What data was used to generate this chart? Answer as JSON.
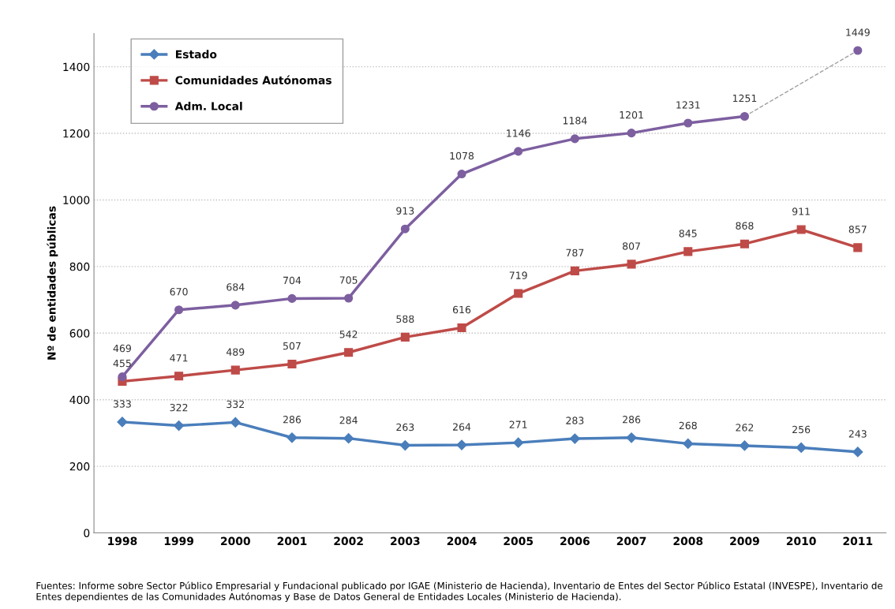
{
  "chart_data": {
    "type": "line",
    "ylabel": "Nº de entidades públicas",
    "categories": [
      "1998",
      "1999",
      "2000",
      "2001",
      "2002",
      "2003",
      "2004",
      "2005",
      "2006",
      "2007",
      "2008",
      "2009",
      "2010",
      "2011"
    ],
    "series": [
      {
        "name": "Estado",
        "color": "#4a7ebb",
        "marker": "diamond",
        "values": [
          333,
          322,
          332,
          286,
          284,
          263,
          264,
          271,
          283,
          286,
          268,
          262,
          256,
          243
        ]
      },
      {
        "name": "Comunidades Autónomas",
        "color": "#be4b48",
        "marker": "square",
        "values": [
          455,
          471,
          489,
          507,
          542,
          588,
          616,
          719,
          787,
          807,
          845,
          868,
          911,
          857
        ]
      },
      {
        "name": "Adm. Local",
        "color": "#7d5fa0",
        "marker": "circle",
        "values": [
          469,
          670,
          684,
          704,
          705,
          913,
          1078,
          1146,
          1184,
          1201,
          1231,
          1251,
          null,
          1449
        ]
      },
      {
        "color": "#a0a0a0",
        "marker": "none",
        "line_style": "dashed",
        "values": [
          null,
          null,
          null,
          null,
          null,
          null,
          null,
          null,
          null,
          null,
          null,
          1251,
          null,
          1449
        ],
        "value_labels": [
          null,
          null,
          null,
          null,
          null,
          null,
          null,
          null,
          null,
          null,
          null,
          null,
          null,
          null
        ]
      }
    ],
    "ylim": [
      0,
      1500
    ],
    "yticks": [
      0,
      200,
      400,
      600,
      800,
      1000,
      1200,
      1400
    ],
    "grid": "y",
    "legend": "top left",
    "data_labels": true,
    "annotations": [
      "Fuentes: Informe sobre Sector Público Empresarial y Fundacional publicado por IGAE (Ministerio de Hacienda), Inventario de Entes del Sector Público Estatal (INVESPE), Inventario de Entes dependientes de las Comunidades Autónomas y Base de Datos General de Entidades Locales (Ministerio de Hacienda)."
    ]
  }
}
